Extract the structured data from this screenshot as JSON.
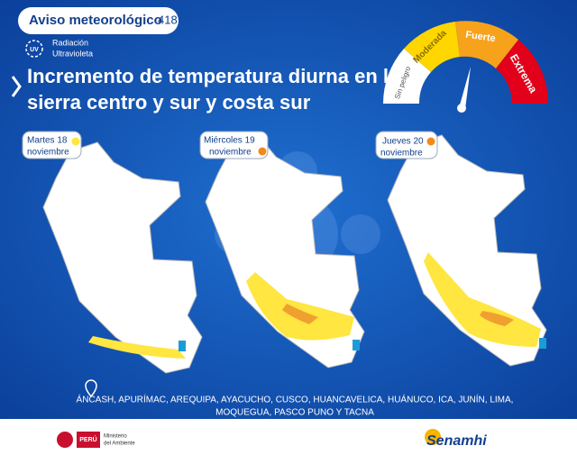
{
  "header": {
    "title": "Aviso meteorológico",
    "number": "418"
  },
  "uv": {
    "icon": "UV",
    "label_lines": [
      "Radiación",
      "Ultravioleta"
    ]
  },
  "title_lines": [
    "Incremento de temperatura diurna en la",
    "sierra centro y sur y costa sur"
  ],
  "gauge": {
    "levels": [
      "Sin peligro",
      "Moderada",
      "Fuerte",
      "Extrema"
    ]
  },
  "days": [
    {
      "day": "Martes 18",
      "month": "noviembre"
    },
    {
      "day": "Miércoles 19",
      "month": "noviembre"
    },
    {
      "day": "Jueves 20",
      "month": "noviembre"
    }
  ],
  "regions": {
    "lines": [
      "ÁNCASH, APURÍMAC, AREQUIPA, AYACUCHO, CUSCO, HUANCAVELICA, HUÁNUCO, ICA, JUNÍN, LIMA,",
      "MOQUEGUA, PASCO PUNO Y TACNA"
    ]
  },
  "footer": {
    "country": "PERÚ",
    "ministry_lines": [
      "Ministerio",
      "del Ambiente"
    ],
    "brand": "Senamhi"
  }
}
